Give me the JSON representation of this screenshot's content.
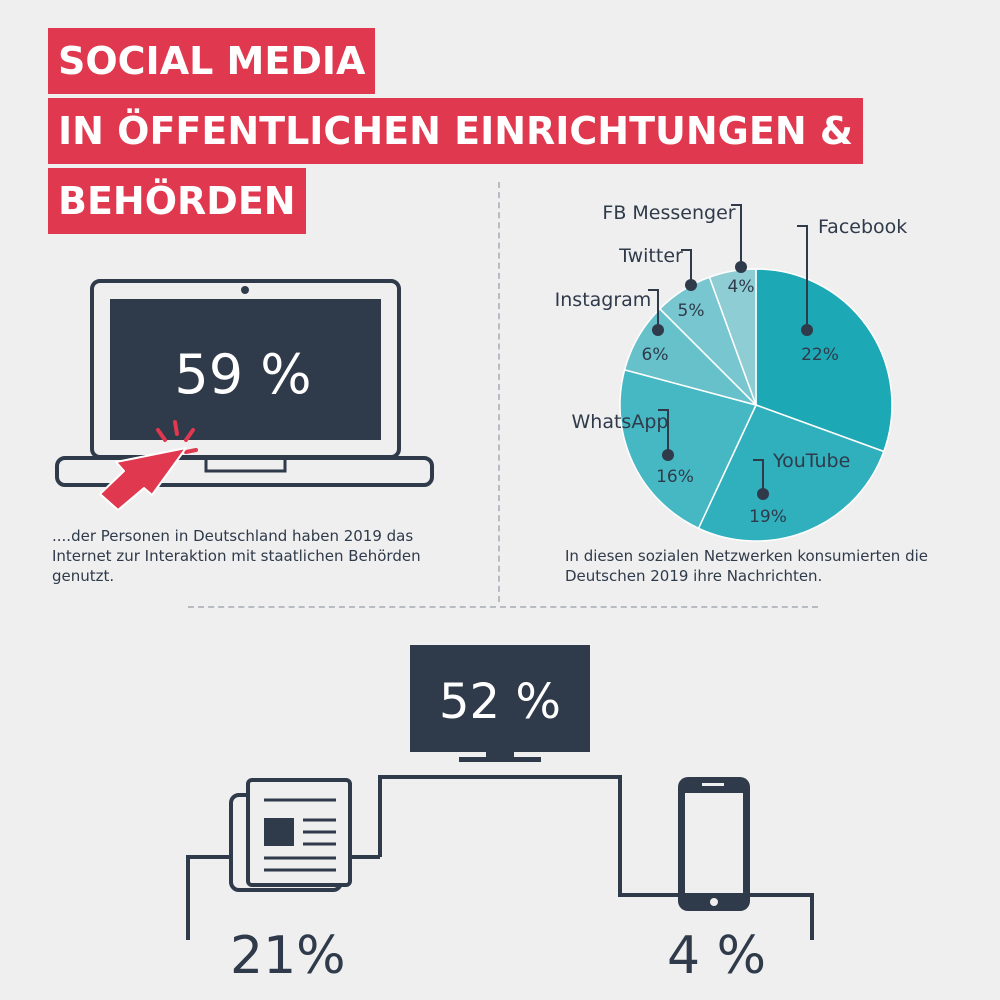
{
  "title": {
    "line1": "SOCIAL MEDIA",
    "line2": "IN ÖFFENTLICHEN EINRICHTUNGEN &",
    "line3": "BEHÖRDEN"
  },
  "laptop": {
    "value": "59 %",
    "caption": "....der Personen in Deutschland haben 2019 das Internet zur Interaktion mit staatlichen Behörden genutzt."
  },
  "pie_caption": "In diesen sozialen Netzwerken konsumierten die Deutschen 2019 ihre Nachrichten.",
  "media": {
    "tv_value": "52 %",
    "newspaper_value": "21%",
    "phone_value": "4 %"
  },
  "colors": {
    "accent": "#e0384e",
    "dark": "#2f3a4a",
    "teal_dark": "#1fa7b5",
    "teal_light": "#8fcdd5"
  },
  "chart_data": [
    {
      "type": "pie",
      "categories": [
        "Facebook",
        "YouTube",
        "WhatsApp",
        "Instagram",
        "Twitter",
        "FB Messenger"
      ],
      "values": [
        22,
        19,
        16,
        6,
        5,
        4
      ],
      "labels": [
        "22%",
        "19%",
        "16%",
        "6%",
        "5%",
        "4%"
      ],
      "colors": [
        "#1da8b6",
        "#30afbc",
        "#45b8c3",
        "#66c1ca",
        "#78c6cf",
        "#8fcdd5"
      ]
    }
  ]
}
